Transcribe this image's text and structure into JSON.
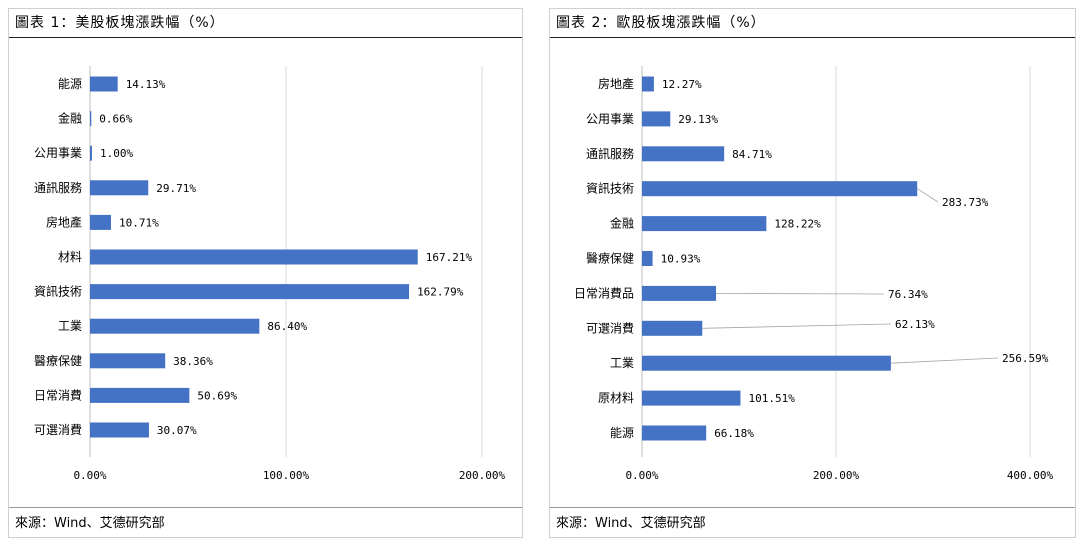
{
  "panels": [
    {
      "title": "圖表 1：美股板塊漲跌幅（%）",
      "source": "來源：Wind、艾德研究部"
    },
    {
      "title": "圖表 2：歐股板塊漲跌幅（%）",
      "source": "來源：Wind、艾德研究部"
    }
  ],
  "chart_data": [
    {
      "type": "bar",
      "orientation": "horizontal",
      "categories": [
        "能源",
        "金融",
        "公用事業",
        "通訊服務",
        "房地產",
        "材料",
        "資訊技術",
        "工業",
        "醫療保健",
        "日常消費",
        "可選消費"
      ],
      "values": [
        14.13,
        0.66,
        1.0,
        29.71,
        10.71,
        167.21,
        162.79,
        86.4,
        38.36,
        50.69,
        30.07
      ],
      "labels": [
        "14.13%",
        "0.66%",
        "1.00%",
        "29.71%",
        "10.71%",
        "167.21%",
        "162.79%",
        "86.40%",
        "38.36%",
        "50.69%",
        "30.07%"
      ],
      "xticks": [
        "0.00%",
        "100.00%",
        "200.00%"
      ],
      "xtick_values": [
        0,
        100,
        200
      ],
      "xlim": [
        0,
        200
      ],
      "grid": true,
      "bar_color": "#4472c4"
    },
    {
      "type": "bar",
      "orientation": "horizontal",
      "categories": [
        "房地產",
        "公用事業",
        "通訊服務",
        "資訊技術",
        "金融",
        "醫療保健",
        "日常消費品",
        "可選消費",
        "工業",
        "原材料",
        "能源"
      ],
      "values": [
        12.27,
        29.13,
        84.71,
        283.73,
        128.22,
        10.93,
        76.34,
        62.13,
        256.59,
        101.51,
        66.18
      ],
      "labels": [
        "12.27%",
        "29.13%",
        "84.71%",
        "283.73%",
        "128.22%",
        "10.93%",
        "76.34%",
        "62.13%",
        "256.59%",
        "101.51%",
        "66.18%"
      ],
      "xticks": [
        "0.00%",
        "200.00%",
        "400.00%"
      ],
      "xtick_values": [
        0,
        200,
        400
      ],
      "xlim": [
        0,
        400
      ],
      "grid": true,
      "bar_color": "#4472c4"
    }
  ]
}
